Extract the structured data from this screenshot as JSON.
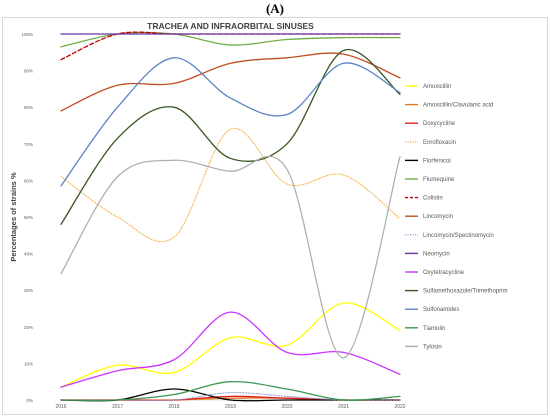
{
  "figure_label": "(A)",
  "chart_data": {
    "type": "line",
    "title": "TRACHEA AND INFRAORBITAL SINUSES",
    "xlabel": "",
    "ylabel": "Percentages of strains %",
    "x": [
      "2016",
      "2017",
      "2018",
      "2019",
      "2020",
      "2021",
      "2022"
    ],
    "ylim": [
      0,
      100
    ],
    "yticks": [
      "0%",
      "10%",
      "20%",
      "30%",
      "40%",
      "50%",
      "60%",
      "70%",
      "80%",
      "90%",
      "100%"
    ],
    "grid": false,
    "legend_position": "right",
    "series": [
      {
        "name": "Amoxicillin",
        "color": "#ffff00",
        "dash": "solid",
        "values": [
          3.5,
          9.5,
          7.5,
          17,
          15,
          26.5,
          19
        ]
      },
      {
        "name": "Amoxicillin/Clavulanic acid",
        "color": "#e07b1f",
        "dash": "solid",
        "values": [
          0,
          0,
          0,
          0.5,
          0.5,
          0,
          0
        ]
      },
      {
        "name": "Doxycycline",
        "color": "#e02020",
        "dash": "solid",
        "values": [
          0,
          0,
          0,
          1,
          0.5,
          0,
          0
        ]
      },
      {
        "name": "Enrofloxacin",
        "color": "#f5b041",
        "dash": "dotted",
        "values": [
          61,
          50,
          44.5,
          74,
          59,
          61.5,
          49.5
        ]
      },
      {
        "name": "Florfenicol",
        "color": "#000000",
        "dash": "solid",
        "values": [
          0,
          0,
          3,
          0,
          0,
          0,
          0
        ]
      },
      {
        "name": "Flumequine",
        "color": "#70ad47",
        "dash": "solid",
        "values": [
          96.5,
          100,
          100,
          97,
          98.5,
          99,
          99
        ]
      },
      {
        "name": "Colistin",
        "color": "#c00000",
        "dash": "dashed",
        "values": [
          93,
          100,
          100,
          100,
          100,
          100,
          100
        ]
      },
      {
        "name": "Lincomycin",
        "color": "#c0501f",
        "dash": "solid",
        "values": [
          79,
          86,
          86.5,
          92,
          93.5,
          94.5,
          88
        ]
      },
      {
        "name": "Lincomycin/Spectinomycin",
        "color": "#8e9ccf",
        "dash": "dotted",
        "values": [
          0,
          0,
          0,
          2,
          1,
          0,
          0
        ]
      },
      {
        "name": "Neomycin",
        "color": "#7030a0",
        "dash": "solid",
        "values": [
          100,
          100,
          100,
          100,
          100,
          100,
          100
        ]
      },
      {
        "name": "Oxytetracycline",
        "color": "#cc33ff",
        "dash": "solid",
        "values": [
          3.5,
          8,
          11,
          24,
          13,
          13,
          7
        ]
      },
      {
        "name": "Sulfamethoxazole/Trimethoprim",
        "color": "#375623",
        "dash": "solid",
        "values": [
          48,
          71.5,
          80,
          66,
          70,
          95.5,
          83.5
        ]
      },
      {
        "name": "Sulfonamides",
        "color": "#5b84c4",
        "dash": "solid",
        "values": [
          58.5,
          80,
          93.5,
          82.5,
          78,
          92,
          84
        ]
      },
      {
        "name": "Tiamulin",
        "color": "#3e9651",
        "dash": "solid",
        "values": [
          0,
          0,
          1.5,
          5,
          3,
          0,
          1
        ]
      },
      {
        "name": "Tylosin",
        "color": "#b0b0b0",
        "dash": "solid",
        "values": [
          34.5,
          61,
          65.5,
          62.5,
          63,
          11.5,
          66.5
        ]
      }
    ]
  }
}
